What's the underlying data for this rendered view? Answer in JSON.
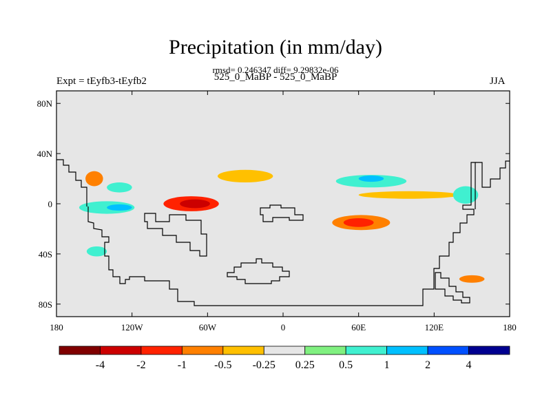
{
  "header": {
    "title": "Precipitation (in mm/day)",
    "stats": "rmsd= 0.246347 diff= 9.29832e-06",
    "subtitle": "525_0_MaBP - 525_0_MaBP",
    "left_label": "Expt = tEyfb3-tEyfb2",
    "right_label": "JJA"
  },
  "chart_data": {
    "type": "heatmap",
    "title": "Precipitation (in mm/day)",
    "units": "mm/day",
    "xlim": [
      -180,
      180
    ],
    "ylim": [
      -90,
      90
    ],
    "x_ticks": [
      {
        "value": -180,
        "label": "180"
      },
      {
        "value": -120,
        "label": "120W"
      },
      {
        "value": -60,
        "label": "60W"
      },
      {
        "value": 0,
        "label": "0"
      },
      {
        "value": 60,
        "label": "60E"
      },
      {
        "value": 120,
        "label": "120E"
      },
      {
        "value": 180,
        "label": "180"
      }
    ],
    "y_ticks": [
      {
        "value": 80,
        "label": "80N"
      },
      {
        "value": 40,
        "label": "40N"
      },
      {
        "value": 0,
        "label": "0"
      },
      {
        "value": -40,
        "label": "40S"
      },
      {
        "value": -80,
        "label": "80S"
      }
    ],
    "background_color": "#e6e6e6",
    "colorbar": {
      "colors": [
        "#800000",
        "#cc0000",
        "#ff2200",
        "#ff8000",
        "#ffc000",
        "#e6e6e6",
        "#80f080",
        "#40f0d0",
        "#00c0ff",
        "#0050ff",
        "#000090"
      ],
      "labels": [
        "-4",
        "-2",
        "-1",
        "-0.5",
        "-0.25",
        "0.25",
        "0.5",
        "1",
        "2",
        "4"
      ]
    },
    "features": [
      {
        "name": "tropical-pacific-drying",
        "lon": -73,
        "lat": 0,
        "rx": 22,
        "ry": 6,
        "level": -1.5
      },
      {
        "name": "tropical-pacific-drying-core",
        "lon": -70,
        "lat": 0,
        "rx": 12,
        "ry": 3.5,
        "level": -2.5
      },
      {
        "name": "equatorial-west-pacific-wetting",
        "lon": -140,
        "lat": -3,
        "rx": 22,
        "ry": 5,
        "level": 0.5
      },
      {
        "name": "equatorial-west-pacific-wetting-core",
        "lon": -130,
        "lat": -3,
        "rx": 10,
        "ry": 2.5,
        "level": 1.2
      },
      {
        "name": "north-pacific-drying",
        "lon": -150,
        "lat": 20,
        "rx": 7,
        "ry": 6,
        "level": -0.6
      },
      {
        "name": "north-pacific-wetting",
        "lon": -130,
        "lat": 13,
        "rx": 10,
        "ry": 4,
        "level": 0.5
      },
      {
        "name": "central-america-drying",
        "lon": -30,
        "lat": 22,
        "rx": 22,
        "ry": 5,
        "level": -0.3
      },
      {
        "name": "south-atlantic-drying",
        "lon": 62,
        "lat": -15,
        "rx": 23,
        "ry": 6,
        "level": -0.6
      },
      {
        "name": "south-atlantic-drying-core",
        "lon": 60,
        "lat": -15,
        "rx": 12,
        "ry": 3.5,
        "level": -1.2
      },
      {
        "name": "north-atlantic-wetting",
        "lon": 70,
        "lat": 18,
        "rx": 28,
        "ry": 5,
        "level": 0.5
      },
      {
        "name": "north-atlantic-wetting-core",
        "lon": 70,
        "lat": 20,
        "rx": 10,
        "ry": 2.5,
        "level": 1.1
      },
      {
        "name": "subtropical-atlantic-drying",
        "lon": 100,
        "lat": 7,
        "rx": 40,
        "ry": 3,
        "level": -0.3
      },
      {
        "name": "east-pacific-dipole",
        "lon": 145,
        "lat": 7,
        "rx": 10,
        "ry": 7,
        "level": 0.6
      },
      {
        "name": "southeast-drying",
        "lon": 150,
        "lat": -60,
        "rx": 10,
        "ry": 3,
        "level": -0.6
      },
      {
        "name": "southwest-wetting",
        "lon": -148,
        "lat": -38,
        "rx": 8,
        "ry": 4,
        "level": 0.5
      }
    ]
  }
}
